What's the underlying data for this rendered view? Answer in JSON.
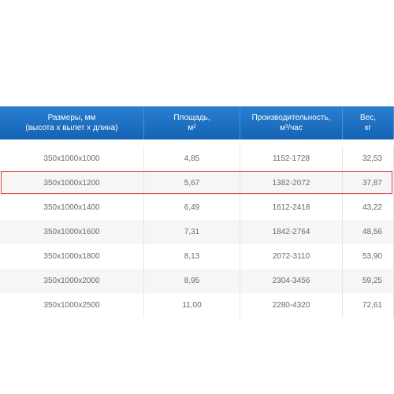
{
  "table": {
    "header": [
      [
        "Размеры, мм",
        "(высота х вылет х длина)"
      ],
      [
        "Площадь,",
        "м²"
      ],
      [
        "Производительность,",
        "м³/час"
      ],
      [
        "Вес,",
        "кг"
      ]
    ],
    "rows": [
      [
        "350x1000x1000",
        "4,85",
        "1152-1728",
        "32,53"
      ],
      [
        "350x1000x1200",
        "5,67",
        "1382-2072",
        "37,87"
      ],
      [
        "350x1000x1400",
        "6,49",
        "1612-2418",
        "43,22"
      ],
      [
        "350x1000x1600",
        "7,31",
        "1842-2764",
        "48,56"
      ],
      [
        "350x1000x1800",
        "8,13",
        "2072-3110",
        "53,90"
      ],
      [
        "350x1000x2000",
        "8,95",
        "2304-3456",
        "59,25"
      ],
      [
        "350x1000x2500",
        "11,00",
        "2280-4320",
        "72,61"
      ]
    ]
  }
}
